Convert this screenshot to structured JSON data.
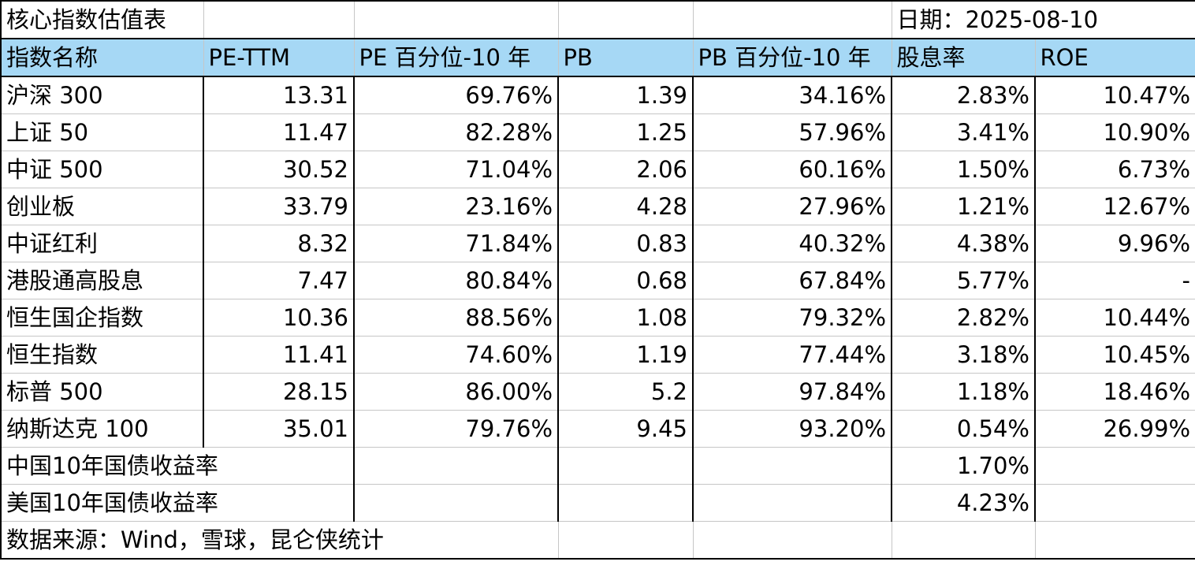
{
  "sheet": {
    "title": "核心指数估值表",
    "date_label": "日期：2025-08-10",
    "columns": [
      "指数名称",
      "PE-TTM",
      "PE 百分位-10 年",
      "PB",
      "PB 百分位-10 年",
      "股息率",
      "ROE"
    ],
    "rows": [
      {
        "name": "沪深 300",
        "pe_ttm": "13.31",
        "pe_pct": "69.76%",
        "pb": "1.39",
        "pb_pct": "34.16%",
        "dividend": "2.83%",
        "roe": "10.47%"
      },
      {
        "name": "上证 50",
        "pe_ttm": "11.47",
        "pe_pct": "82.28%",
        "pb": "1.25",
        "pb_pct": "57.96%",
        "dividend": "3.41%",
        "roe": "10.90%"
      },
      {
        "name": "中证 500",
        "pe_ttm": "30.52",
        "pe_pct": "71.04%",
        "pb": "2.06",
        "pb_pct": "60.16%",
        "dividend": "1.50%",
        "roe": "6.73%"
      },
      {
        "name": "创业板",
        "pe_ttm": "33.79",
        "pe_pct": "23.16%",
        "pb": "4.28",
        "pb_pct": "27.96%",
        "dividend": "1.21%",
        "roe": "12.67%"
      },
      {
        "name": "中证红利",
        "pe_ttm": "8.32",
        "pe_pct": "71.84%",
        "pb": "0.83",
        "pb_pct": "40.32%",
        "dividend": "4.38%",
        "roe": "9.96%"
      },
      {
        "name": "港股通高股息",
        "pe_ttm": "7.47",
        "pe_pct": "80.84%",
        "pb": "0.68",
        "pb_pct": "67.84%",
        "dividend": "5.77%",
        "roe": "-"
      },
      {
        "name": "恒生国企指数",
        "pe_ttm": "10.36",
        "pe_pct": "88.56%",
        "pb": "1.08",
        "pb_pct": "79.32%",
        "dividend": "2.82%",
        "roe": "10.44%"
      },
      {
        "name": "恒生指数",
        "pe_ttm": "11.41",
        "pe_pct": "74.60%",
        "pb": "1.19",
        "pb_pct": "77.44%",
        "dividend": "3.18%",
        "roe": "10.45%"
      },
      {
        "name": "标普 500",
        "pe_ttm": "28.15",
        "pe_pct": "86.00%",
        "pb": "5.2",
        "pb_pct": "97.84%",
        "dividend": "1.18%",
        "roe": "18.46%"
      },
      {
        "name": "纳斯达克 100",
        "pe_ttm": "35.01",
        "pe_pct": "79.76%",
        "pb": "9.45",
        "pb_pct": "93.20%",
        "dividend": "0.54%",
        "roe": "26.99%"
      }
    ],
    "bond_yields": [
      {
        "label": "中国10年国债收益率",
        "value": "1.70%"
      },
      {
        "label": "美国10年国债收益率",
        "value": "4.23%"
      }
    ],
    "source": "数据来源：Wind，雪球，昆仑侠统计",
    "header_color": "#a6d8f5"
  }
}
